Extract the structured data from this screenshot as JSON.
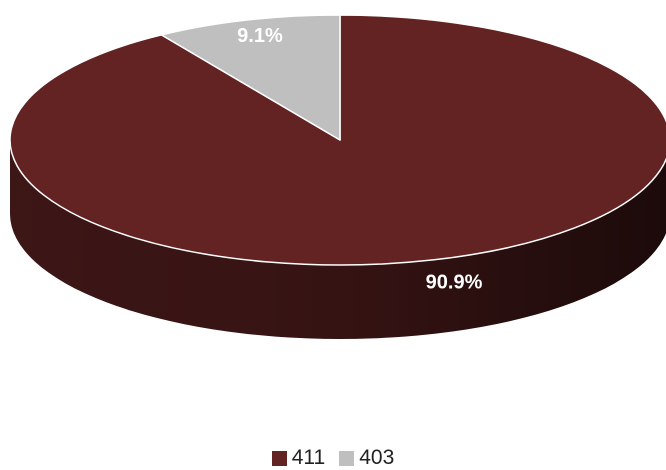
{
  "chart_data": {
    "type": "pie",
    "title": "",
    "categories": [
      "411",
      "403"
    ],
    "values": [
      90.9,
      9.1
    ],
    "data_labels": [
      "90.9%",
      "9.1%"
    ],
    "legend_position": "bottom",
    "colors": [
      "#632323",
      "#bfbfbf"
    ],
    "style": "3d"
  }
}
